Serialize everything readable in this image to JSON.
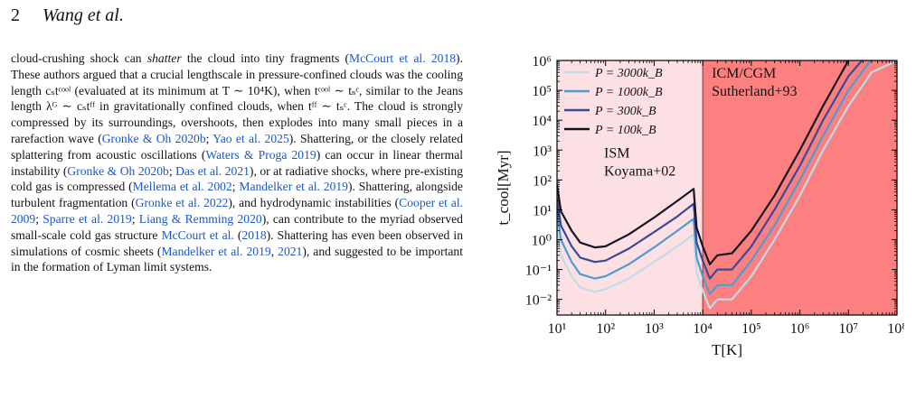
{
  "header": {
    "page_number": "2",
    "running_title": "Wang et al."
  },
  "paragraph": {
    "segments": [
      {
        "t": "text",
        "v": "cloud-crushing shock can "
      },
      {
        "t": "em",
        "v": "shatter"
      },
      {
        "t": "text",
        "v": " the cloud into tiny fragments ("
      },
      {
        "t": "cite",
        "v": "McCourt et al. 2018"
      },
      {
        "t": "text",
        "v": "). These authors argued that a crucial lengthscale in pressure-confined clouds was the cooling length cₛtᶜᵒᵒˡ (evaluated at its minimum at T ∼ 10⁴K), when tᶜᵒᵒˡ ∼ tₛᶜ, similar to the Jeans length λᴳ ∼ cₛtᶠᶠ in gravitationally confined clouds, when tᶠᶠ ∼ tₛᶜ. The cloud is strongly compressed by its surroundings, overshoots, then explodes into many small pieces in a rarefaction wave ("
      },
      {
        "t": "cite",
        "v": "Gronke & Oh 2020b"
      },
      {
        "t": "text",
        "v": "; "
      },
      {
        "t": "cite",
        "v": "Yao et al. 2025"
      },
      {
        "t": "text",
        "v": "). Shattering, or the closely related splattering from acoustic oscillations ("
      },
      {
        "t": "cite",
        "v": "Waters & Proga 2019"
      },
      {
        "t": "text",
        "v": ") can occur in linear thermal instability ("
      },
      {
        "t": "cite",
        "v": "Gronke & Oh 2020b"
      },
      {
        "t": "text",
        "v": "; "
      },
      {
        "t": "cite",
        "v": "Das et al. 2021"
      },
      {
        "t": "text",
        "v": "), or at radiative shocks, where pre-existing cold gas is compressed ("
      },
      {
        "t": "cite",
        "v": "Mellema et al. 2002"
      },
      {
        "t": "text",
        "v": "; "
      },
      {
        "t": "cite",
        "v": "Mandelker et al. 2019"
      },
      {
        "t": "text",
        "v": "). Shattering, alongside turbulent fragmentation ("
      },
      {
        "t": "cite",
        "v": "Gronke et al. 2022"
      },
      {
        "t": "text",
        "v": "), and hydrodynamic instabilities ("
      },
      {
        "t": "cite",
        "v": "Cooper et al. 2009"
      },
      {
        "t": "text",
        "v": "; "
      },
      {
        "t": "cite",
        "v": "Sparre et al. 2019"
      },
      {
        "t": "text",
        "v": "; "
      },
      {
        "t": "cite",
        "v": "Liang & Remming 2020"
      },
      {
        "t": "text",
        "v": "), can contribute to the myriad observed small-scale cold gas structure "
      },
      {
        "t": "cite",
        "v": "McCourt et al."
      },
      {
        "t": "text",
        "v": " ("
      },
      {
        "t": "cite",
        "v": "2018"
      },
      {
        "t": "text",
        "v": "). Shattering has even been observed in simulations of cosmic sheets ("
      },
      {
        "t": "cite",
        "v": "Mandelker et al. 2019"
      },
      {
        "t": "text",
        "v": ", "
      },
      {
        "t": "cite",
        "v": "2021"
      },
      {
        "t": "text",
        "v": "), and suggested to be important in the formation of Lyman limit systems."
      }
    ]
  },
  "colors": {
    "ism_region": "#fde0e3",
    "icm_region": "#fd8080",
    "series": [
      "#c2dbe6",
      "#4f9bd2",
      "#3a4a96",
      "#141423"
    ]
  },
  "chart_data": {
    "type": "line",
    "xlabel": "T[K]",
    "ylabel": "t_cool[Myr]",
    "xscale": "log",
    "yscale": "log",
    "xlim": [
      10,
      100000000
    ],
    "ylim": [
      0.003,
      1000000
    ],
    "xticks": [
      "10¹",
      "10²",
      "10³",
      "10⁴",
      "10⁵",
      "10⁶",
      "10⁷",
      "10⁸"
    ],
    "yticks": [
      "10⁻²",
      "10⁻¹",
      "10⁰",
      "10¹",
      "10²",
      "10³",
      "10⁴",
      "10⁵",
      "10⁶"
    ],
    "legend_position": "top-left",
    "regions": [
      {
        "label_lines": [
          "ISM",
          "Koyama+02"
        ],
        "x_range": [
          10,
          10000
        ],
        "color": "#fde0e3"
      },
      {
        "label_lines": [
          "ICM/CGM",
          "Sutherland+93"
        ],
        "x_range": [
          10000,
          100000000
        ],
        "color": "#fd8080"
      }
    ],
    "series": [
      {
        "name": "P = 3000k_B",
        "color": "#c2dbe6",
        "points": [
          [
            10,
            3
          ],
          [
            12,
            0.3
          ],
          [
            20,
            0.06
          ],
          [
            30,
            0.025
          ],
          [
            60,
            0.018
          ],
          [
            100,
            0.022
          ],
          [
            300,
            0.05
          ],
          [
            1000,
            0.18
          ],
          [
            3000,
            0.6
          ],
          [
            6500,
            1.5
          ],
          [
            7500,
            0.08
          ],
          [
            10000,
            0.02
          ],
          [
            14000,
            0.005
          ],
          [
            20000,
            0.01
          ],
          [
            40000,
            0.01
          ],
          [
            100000,
            0.06
          ],
          [
            300000,
            1
          ],
          [
            1000000,
            30
          ],
          [
            3000000,
            1000
          ],
          [
            10000000,
            30000
          ],
          [
            30000000,
            400000
          ],
          [
            100000000,
            1000000
          ]
        ]
      },
      {
        "name": "P = 1000k_B",
        "color": "#4f9bd2",
        "points": [
          [
            10,
            9
          ],
          [
            12,
            1
          ],
          [
            20,
            0.18
          ],
          [
            30,
            0.07
          ],
          [
            60,
            0.05
          ],
          [
            100,
            0.06
          ],
          [
            300,
            0.15
          ],
          [
            1000,
            0.55
          ],
          [
            3000,
            2
          ],
          [
            6500,
            5
          ],
          [
            7500,
            0.25
          ],
          [
            10000,
            0.06
          ],
          [
            14000,
            0.015
          ],
          [
            20000,
            0.03
          ],
          [
            40000,
            0.03
          ],
          [
            100000,
            0.2
          ],
          [
            300000,
            3
          ],
          [
            1000000,
            100
          ],
          [
            3000000,
            3000
          ],
          [
            10000000,
            100000
          ],
          [
            30000000,
            1100000
          ]
        ]
      },
      {
        "name": "P = 300k_B",
        "color": "#3a4a96",
        "points": [
          [
            10,
            25
          ],
          [
            12,
            3
          ],
          [
            20,
            0.6
          ],
          [
            30,
            0.25
          ],
          [
            60,
            0.18
          ],
          [
            100,
            0.2
          ],
          [
            300,
            0.5
          ],
          [
            1000,
            1.8
          ],
          [
            3000,
            6
          ],
          [
            6500,
            16
          ],
          [
            7500,
            0.8
          ],
          [
            10000,
            0.2
          ],
          [
            14000,
            0.05
          ],
          [
            20000,
            0.1
          ],
          [
            40000,
            0.1
          ],
          [
            100000,
            0.6
          ],
          [
            300000,
            10
          ],
          [
            1000000,
            300
          ],
          [
            3000000,
            10000
          ],
          [
            10000000,
            300000
          ],
          [
            20000000,
            1100000
          ]
        ]
      },
      {
        "name": "P = 100k_B",
        "color": "#141423",
        "points": [
          [
            10,
            70
          ],
          [
            12,
            9
          ],
          [
            20,
            2
          ],
          [
            30,
            0.8
          ],
          [
            60,
            0.55
          ],
          [
            100,
            0.6
          ],
          [
            300,
            1.5
          ],
          [
            1000,
            5.5
          ],
          [
            3000,
            20
          ],
          [
            6500,
            50
          ],
          [
            7500,
            2.5
          ],
          [
            10000,
            0.6
          ],
          [
            14000,
            0.15
          ],
          [
            20000,
            0.3
          ],
          [
            40000,
            0.35
          ],
          [
            100000,
            2
          ],
          [
            300000,
            30
          ],
          [
            1000000,
            1000
          ],
          [
            3000000,
            30000
          ],
          [
            10000000,
            1000000
          ],
          [
            12000000,
            1100000
          ]
        ]
      }
    ]
  }
}
